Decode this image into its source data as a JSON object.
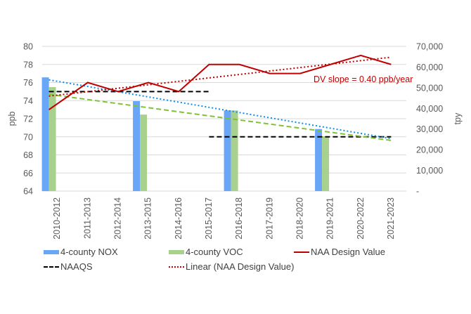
{
  "chart_data": {
    "type": "bar",
    "title": "",
    "categories": [
      "2010-2012",
      "2011-2013",
      "2012-2014",
      "2013-2015",
      "2014-2016",
      "2015-2017",
      "2016-2018",
      "2017-2019",
      "2018-2020",
      "2019-2021",
      "2020-2022",
      "2021-2023"
    ],
    "xlabel": "",
    "ylabel": "ppb",
    "y2label": "tpy",
    "ylim": [
      64,
      80
    ],
    "y2lim": [
      0,
      70000
    ],
    "yticks": [
      "64",
      "66",
      "68",
      "70",
      "72",
      "74",
      "76",
      "78",
      "80"
    ],
    "y2ticks": [
      "-",
      "10,000",
      "20,000",
      "30,000",
      "40,000",
      "50,000",
      "60,000",
      "70,000"
    ],
    "grid": true,
    "legend_position": "bottom",
    "series": [
      {
        "name": "4-county NOX",
        "type": "bar",
        "axis": "right",
        "color": "#6aa6f8",
        "values": [
          55000,
          null,
          null,
          43500,
          null,
          null,
          39000,
          null,
          null,
          30000,
          null,
          null
        ]
      },
      {
        "name": "4-county VOC",
        "type": "bar",
        "axis": "right",
        "color": "#a9d18e",
        "values": [
          50300,
          null,
          null,
          37000,
          null,
          null,
          39000,
          null,
          null,
          26500,
          null,
          null
        ]
      },
      {
        "name": "NAA Design Value",
        "type": "line",
        "axis": "left",
        "color": "#c00000",
        "values": [
          73,
          76,
          75,
          76,
          75,
          78,
          78,
          77,
          77,
          78,
          79,
          78
        ]
      },
      {
        "name": "NAAQS",
        "type": "dashed-line",
        "axis": "left",
        "color": "#000000",
        "segments": [
          {
            "from": "2010-2012",
            "to": "2015-2017",
            "value": 75
          },
          {
            "from": "2015-2017",
            "to": "2021-2023",
            "value": 70
          }
        ]
      },
      {
        "name": "Linear (NAA Design Value)",
        "type": "trendline",
        "axis": "left",
        "color": "#c00000",
        "start": 74.5,
        "end": 78.8
      }
    ],
    "unlabeled_trendlines": [
      {
        "of": "4-county NOX",
        "color": "#0d8ee8",
        "style": "dotted",
        "start": 76.3,
        "end": 69.8
      },
      {
        "of": "4-county VOC",
        "color": "#7fc236",
        "style": "dashed",
        "start": 74.7,
        "end": 69.6
      }
    ],
    "annotations": [
      {
        "text": "DV slope = 0.40 ppb/year",
        "color": "#c00000"
      }
    ]
  },
  "legend": {
    "items": [
      {
        "label": "4-county NOX"
      },
      {
        "label": "4-county VOC"
      },
      {
        "label": "NAA Design Value"
      },
      {
        "label": "NAAQS"
      },
      {
        "label": "Linear (NAA Design Value)"
      }
    ]
  }
}
